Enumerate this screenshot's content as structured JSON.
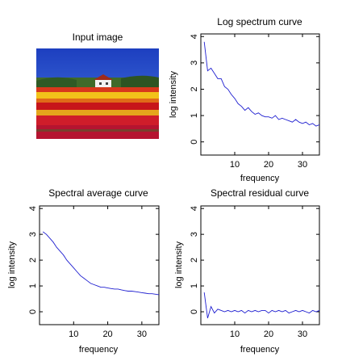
{
  "colors": {
    "curve": "#1f1fd0",
    "axis": "#000000",
    "background": "#ffffff"
  },
  "image_panel": {
    "title": "Input image",
    "content": "tulip field with a white farmhouse under a blue sky"
  },
  "chart_data": [
    {
      "type": "line",
      "title": "Log spectrum curve",
      "xlabel": "frequency",
      "ylabel": "log intensity",
      "xlim": [
        0,
        35
      ],
      "ylim": [
        -0.5,
        4.1
      ],
      "xticks": [
        10,
        20,
        30
      ],
      "yticks": [
        0,
        1,
        2,
        3,
        4
      ],
      "x": [
        1,
        2,
        3,
        4,
        5,
        6,
        7,
        8,
        9,
        10,
        11,
        12,
        13,
        14,
        15,
        16,
        17,
        18,
        19,
        20,
        21,
        22,
        23,
        24,
        25,
        26,
        27,
        28,
        29,
        30,
        31,
        32,
        33,
        34,
        35
      ],
      "series": [
        {
          "values": [
            3.8,
            2.7,
            2.8,
            2.6,
            2.4,
            2.4,
            2.1,
            2.0,
            1.8,
            1.65,
            1.45,
            1.35,
            1.2,
            1.3,
            1.15,
            1.05,
            1.1,
            1.0,
            0.95,
            0.95,
            0.9,
            1.0,
            0.85,
            0.9,
            0.85,
            0.8,
            0.75,
            0.85,
            0.75,
            0.7,
            0.75,
            0.65,
            0.7,
            0.6,
            0.65
          ]
        }
      ]
    },
    {
      "type": "line",
      "title": "Spectral average curve",
      "xlabel": "frequency",
      "ylabel": "log intensity",
      "xlim": [
        0,
        35
      ],
      "ylim": [
        -0.5,
        4.1
      ],
      "xticks": [
        10,
        20,
        30
      ],
      "yticks": [
        0,
        1,
        2,
        3,
        4
      ],
      "x": [
        1,
        2,
        3,
        4,
        5,
        6,
        7,
        8,
        9,
        10,
        11,
        12,
        13,
        14,
        15,
        16,
        17,
        18,
        19,
        20,
        21,
        22,
        23,
        24,
        25,
        26,
        27,
        28,
        29,
        30,
        31,
        32,
        33,
        34,
        35
      ],
      "series": [
        {
          "values": [
            3.1,
            3.0,
            2.85,
            2.7,
            2.5,
            2.35,
            2.2,
            2.0,
            1.85,
            1.7,
            1.55,
            1.4,
            1.3,
            1.2,
            1.1,
            1.05,
            1.0,
            0.95,
            0.95,
            0.92,
            0.9,
            0.88,
            0.88,
            0.85,
            0.82,
            0.8,
            0.8,
            0.78,
            0.76,
            0.74,
            0.72,
            0.7,
            0.7,
            0.68,
            0.66
          ]
        }
      ]
    },
    {
      "type": "line",
      "title": "Spectral residual curve",
      "xlabel": "frequency",
      "ylabel": "log intensity",
      "xlim": [
        0,
        35
      ],
      "ylim": [
        -0.5,
        4.1
      ],
      "xticks": [
        10,
        20,
        30
      ],
      "yticks": [
        0,
        1,
        2,
        3,
        4
      ],
      "x": [
        1,
        2,
        3,
        4,
        5,
        6,
        7,
        8,
        9,
        10,
        11,
        12,
        13,
        14,
        15,
        16,
        17,
        18,
        19,
        20,
        21,
        22,
        23,
        24,
        25,
        26,
        27,
        28,
        29,
        30,
        31,
        32,
        33,
        34,
        35
      ],
      "series": [
        {
          "values": [
            0.75,
            -0.25,
            0.2,
            -0.05,
            0.1,
            0.05,
            0.0,
            0.05,
            0.0,
            0.05,
            0.0,
            0.05,
            -0.05,
            0.05,
            0.0,
            0.05,
            0.0,
            0.05,
            0.05,
            -0.05,
            0.05,
            0.0,
            0.05,
            0.0,
            0.05,
            -0.05,
            0.0,
            0.05,
            0.0,
            0.05,
            0.0,
            -0.05,
            0.05,
            0.0,
            0.05
          ]
        }
      ]
    }
  ]
}
